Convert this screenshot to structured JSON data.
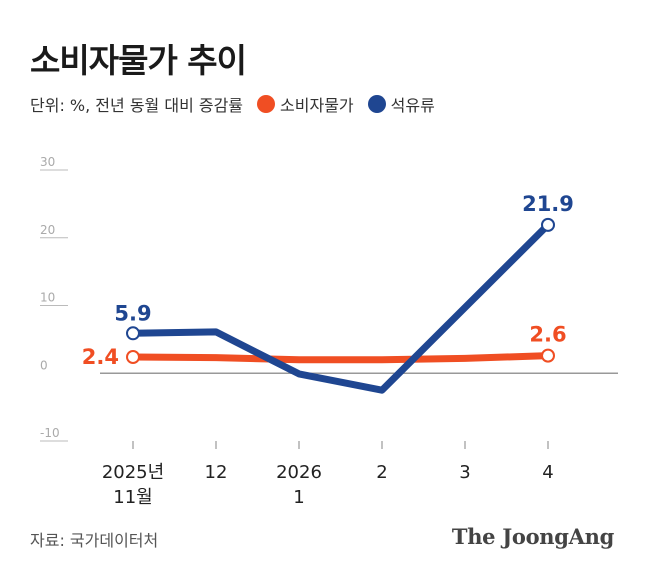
{
  "header": {
    "title": "소비자물가 추이",
    "unit_note": "단위: %, 전년 동월 대비 증감률"
  },
  "footer": {
    "source": "자료: 국가데이터처",
    "brand": "The JoongAng"
  },
  "colors": {
    "consumer_prices": "#f04e23",
    "petroleum": "#1f4691",
    "axis_tick": "#bbbbbb",
    "zero_line": "#999999"
  },
  "chart_data": {
    "type": "line",
    "categories": [
      [
        "2025년",
        "11월"
      ],
      [
        "12"
      ],
      [
        "2026",
        "1"
      ],
      [
        "2"
      ],
      [
        "3"
      ],
      [
        "4"
      ]
    ],
    "ylim": [
      -10,
      30
    ],
    "yticks": [
      30,
      20,
      10,
      0,
      -10
    ],
    "legend_position": "top-left",
    "series": [
      {
        "name": "소비자물가",
        "color": "#f04e23",
        "values": [
          2.4,
          2.3,
          2.0,
          2.0,
          2.2,
          2.6
        ],
        "labels": [
          {
            "index": 0,
            "text": "2.4"
          },
          {
            "index": 5,
            "text": "2.6"
          }
        ]
      },
      {
        "name": "석유류",
        "color": "#1f4691",
        "values": [
          5.9,
          6.1,
          -0.1,
          -2.5,
          null,
          21.9
        ],
        "labels": [
          {
            "index": 0,
            "text": "5.9"
          },
          {
            "index": 5,
            "text": "21.9"
          }
        ]
      }
    ]
  }
}
